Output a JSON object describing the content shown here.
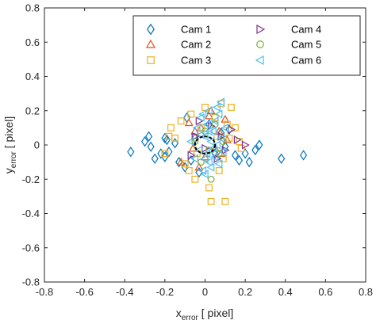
{
  "chart_data": {
    "type": "scatter",
    "title": "",
    "xlabel": {
      "main": "x",
      "sub": "error",
      "unit": " [ pixel]"
    },
    "ylabel": {
      "main": "y",
      "sub": "error",
      "unit": " [ pixel]"
    },
    "xlim": [
      -0.8,
      0.8
    ],
    "ylim": [
      -0.8,
      0.8
    ],
    "xticks": [
      -0.8,
      -0.6,
      -0.4,
      -0.2,
      0,
      0.2,
      0.4,
      0.6,
      0.8
    ],
    "yticks": [
      -0.8,
      -0.6,
      -0.4,
      -0.2,
      0,
      0.2,
      0.4,
      0.6,
      0.8
    ],
    "xtick_labels": [
      "-0.8",
      "-0.6",
      "-0.4",
      "-0.2",
      "0",
      "0.2",
      "0.4",
      "0.6",
      "0.8"
    ],
    "ytick_labels": [
      "-0.8",
      "-0.6",
      "-0.4",
      "-0.2",
      "0",
      "0.2",
      "0.4",
      "0.6",
      "0.8"
    ],
    "grid": false,
    "legend_position": "top-right",
    "annotation": {
      "shape": "dashed-circle",
      "center": [
        0,
        0
      ],
      "radius": 0.05,
      "color": "#000000"
    },
    "series": [
      {
        "name": "Cam 1",
        "marker": "diamond",
        "color": "#0072BD",
        "points": [
          [
            -0.37,
            -0.04
          ],
          [
            -0.3,
            0.02
          ],
          [
            -0.28,
            0.05
          ],
          [
            -0.27,
            -0.01
          ],
          [
            -0.25,
            -0.08
          ],
          [
            -0.22,
            -0.05
          ],
          [
            -0.2,
            0.04
          ],
          [
            -0.2,
            -0.07
          ],
          [
            -0.19,
            0.03
          ],
          [
            -0.18,
            -0.04
          ],
          [
            -0.15,
            0.01
          ],
          [
            -0.13,
            -0.1
          ],
          [
            -0.1,
            -0.13
          ],
          [
            -0.09,
            0.16
          ],
          [
            -0.07,
            -0.09
          ],
          [
            -0.05,
            0.04
          ],
          [
            -0.03,
            -0.16
          ],
          [
            0.02,
            0.12
          ],
          [
            0.05,
            -0.05
          ],
          [
            0.08,
            0.07
          ],
          [
            0.1,
            -0.01
          ],
          [
            0.12,
            0.09
          ],
          [
            0.15,
            -0.06
          ],
          [
            0.17,
            -0.09
          ],
          [
            0.2,
            -0.05
          ],
          [
            0.22,
            -0.1
          ],
          [
            0.25,
            -0.03
          ],
          [
            0.27,
            0.0
          ],
          [
            0.38,
            -0.08
          ],
          [
            0.49,
            -0.06
          ]
        ]
      },
      {
        "name": "Cam 2",
        "marker": "triangle-up",
        "color": "#D95319",
        "points": [
          [
            -0.12,
            -0.1
          ],
          [
            -0.08,
            0.13
          ],
          [
            -0.06,
            -0.02
          ],
          [
            -0.05,
            0.08
          ],
          [
            -0.03,
            -0.13
          ],
          [
            -0.02,
            0.1
          ],
          [
            0.0,
            -0.07
          ],
          [
            0.02,
            0.17
          ],
          [
            0.03,
            0.2
          ],
          [
            0.05,
            -0.02
          ],
          [
            0.07,
            0.08
          ],
          [
            0.08,
            -0.05
          ],
          [
            0.1,
            0.15
          ],
          [
            0.11,
            0.03
          ]
        ]
      },
      {
        "name": "Cam 3",
        "marker": "square",
        "color": "#EDB120",
        "points": [
          [
            -0.2,
            -0.05
          ],
          [
            -0.18,
            0.05
          ],
          [
            -0.17,
            0.1
          ],
          [
            -0.15,
            0.04
          ],
          [
            -0.12,
            0.14
          ],
          [
            -0.1,
            -0.11
          ],
          [
            -0.08,
            -0.15
          ],
          [
            -0.07,
            0.18
          ],
          [
            -0.05,
            -0.2
          ],
          [
            -0.04,
            -0.05
          ],
          [
            -0.02,
            0.1
          ],
          [
            0.0,
            0.22
          ],
          [
            0.02,
            -0.25
          ],
          [
            0.03,
            -0.33
          ],
          [
            0.05,
            0.16
          ],
          [
            0.06,
            0.05
          ],
          [
            0.07,
            -0.15
          ],
          [
            0.08,
            0.24
          ],
          [
            0.09,
            -0.08
          ],
          [
            0.1,
            -0.33
          ],
          [
            0.11,
            0.12
          ],
          [
            0.12,
            0.04
          ],
          [
            0.13,
            0.22
          ],
          [
            0.15,
            0.1
          ],
          [
            0.17,
            0.02
          ],
          [
            0.18,
            -0.02
          ]
        ]
      },
      {
        "name": "Cam 4",
        "marker": "triangle-right",
        "color": "#7E2F8E",
        "points": [
          [
            -0.07,
            -0.06
          ],
          [
            -0.05,
            0.05
          ],
          [
            -0.03,
            0.14
          ],
          [
            0.0,
            -0.02
          ],
          [
            0.03,
            0.11
          ],
          [
            0.06,
            -0.08
          ],
          [
            0.08,
            0.05
          ],
          [
            0.1,
            -0.03
          ],
          [
            0.13,
            0.09
          ],
          [
            0.16,
            0.03
          ],
          [
            0.2,
            0.0
          ]
        ]
      },
      {
        "name": "Cam 5",
        "marker": "circle",
        "color": "#77AC30",
        "points": [
          [
            -0.05,
            0.02
          ],
          [
            -0.02,
            -0.1
          ],
          [
            0.0,
            0.08
          ],
          [
            0.02,
            -0.03
          ],
          [
            0.03,
            -0.2
          ],
          [
            0.05,
            0.12
          ],
          [
            0.07,
            -0.05
          ],
          [
            0.09,
            0.02
          ]
        ]
      },
      {
        "name": "Cam 6",
        "marker": "triangle-left",
        "color": "#4DBEEE",
        "points": [
          [
            -0.07,
            0.02
          ],
          [
            -0.05,
            -0.08
          ],
          [
            -0.04,
            0.1
          ],
          [
            -0.03,
            -0.03
          ],
          [
            -0.02,
            0.16
          ],
          [
            -0.01,
            -0.15
          ],
          [
            0.0,
            0.05
          ],
          [
            0.0,
            -0.08
          ],
          [
            0.01,
            0.12
          ],
          [
            0.01,
            -0.05
          ],
          [
            0.02,
            0.2
          ],
          [
            0.02,
            -0.1
          ],
          [
            0.03,
            0.02
          ],
          [
            0.03,
            -0.13
          ],
          [
            0.04,
            0.08
          ],
          [
            0.04,
            -0.02
          ],
          [
            0.05,
            0.14
          ],
          [
            0.05,
            -0.07
          ],
          [
            0.06,
            0.22
          ],
          [
            0.06,
            0.0
          ],
          [
            0.07,
            0.18
          ],
          [
            0.07,
            -0.11
          ],
          [
            0.08,
            0.25
          ],
          [
            0.08,
            0.04
          ],
          [
            0.09,
            -0.04
          ],
          [
            0.1,
            0.1
          ],
          [
            -0.01,
            0.18
          ],
          [
            0.0,
            -0.17
          ],
          [
            0.02,
            0.08
          ],
          [
            -0.02,
            0.06
          ]
        ]
      }
    ]
  }
}
